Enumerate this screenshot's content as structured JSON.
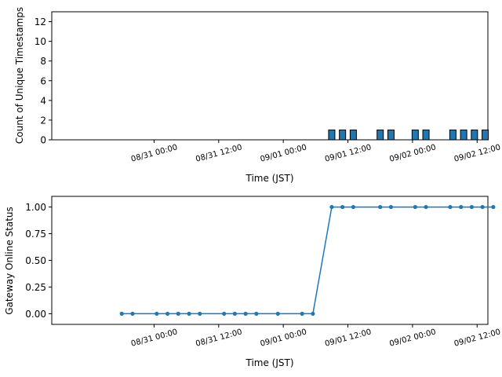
{
  "colors": {
    "bar": "#1f77b4",
    "bar_edge": "#000000",
    "line": "#1f77b4",
    "axes": "#000000",
    "background": "#ffffff"
  },
  "chart_data": [
    {
      "type": "bar",
      "xlabel": "Time (JST)",
      "ylabel": "Count of Unique Timestamps",
      "ylim": [
        0,
        13
      ],
      "yticks": [
        0,
        2,
        4,
        6,
        8,
        10,
        12
      ],
      "xlim": [
        "2025-08-30 05:00",
        "2025-09-02 14:00"
      ],
      "xticks": [
        {
          "t": "2025-08-31 00:00",
          "label": "08/31 00:00"
        },
        {
          "t": "2025-08-31 12:00",
          "label": "08/31 12:00"
        },
        {
          "t": "2025-09-01 00:00",
          "label": "09/01 00:00"
        },
        {
          "t": "2025-09-01 12:00",
          "label": "09/01 12:00"
        },
        {
          "t": "2025-09-02 00:00",
          "label": "09/02 00:00"
        },
        {
          "t": "2025-09-02 12:00",
          "label": "09/02 12:00"
        }
      ],
      "grid": false,
      "bars": [
        {
          "t": "2025-09-01 09:00",
          "value": 1
        },
        {
          "t": "2025-09-01 11:00",
          "value": 1
        },
        {
          "t": "2025-09-01 13:00",
          "value": 1
        },
        {
          "t": "2025-09-01 18:00",
          "value": 1
        },
        {
          "t": "2025-09-01 20:00",
          "value": 1
        },
        {
          "t": "2025-09-02 00:30",
          "value": 1
        },
        {
          "t": "2025-09-02 02:30",
          "value": 1
        },
        {
          "t": "2025-09-02 07:30",
          "value": 1
        },
        {
          "t": "2025-09-02 09:30",
          "value": 1
        },
        {
          "t": "2025-09-02 11:30",
          "value": 1
        },
        {
          "t": "2025-09-02 13:30",
          "value": 1
        }
      ]
    },
    {
      "type": "line",
      "xlabel": "Time (JST)",
      "ylabel": "Gateway Online Status",
      "ylim": [
        -0.1,
        1.1
      ],
      "yticks": [
        "0.00",
        "0.25",
        "0.50",
        "0.75",
        "1.00"
      ],
      "xlim": [
        "2025-08-30 05:00",
        "2025-09-02 14:00"
      ],
      "xticks": [
        {
          "t": "2025-08-31 00:00",
          "label": "08/31 00:00"
        },
        {
          "t": "2025-08-31 12:00",
          "label": "08/31 12:00"
        },
        {
          "t": "2025-09-01 00:00",
          "label": "09/01 00:00"
        },
        {
          "t": "2025-09-01 12:00",
          "label": "09/01 12:00"
        },
        {
          "t": "2025-09-02 00:00",
          "label": "09/02 00:00"
        },
        {
          "t": "2025-09-02 12:00",
          "label": "09/02 12:00"
        }
      ],
      "grid": false,
      "points": [
        {
          "t": "2025-08-30 18:00",
          "value": 0
        },
        {
          "t": "2025-08-30 20:00",
          "value": 0
        },
        {
          "t": "2025-08-31 00:30",
          "value": 0
        },
        {
          "t": "2025-08-31 02:30",
          "value": 0
        },
        {
          "t": "2025-08-31 04:30",
          "value": 0
        },
        {
          "t": "2025-08-31 06:30",
          "value": 0
        },
        {
          "t": "2025-08-31 08:30",
          "value": 0
        },
        {
          "t": "2025-08-31 13:00",
          "value": 0
        },
        {
          "t": "2025-08-31 15:00",
          "value": 0
        },
        {
          "t": "2025-08-31 17:00",
          "value": 0
        },
        {
          "t": "2025-08-31 19:00",
          "value": 0
        },
        {
          "t": "2025-08-31 23:00",
          "value": 0
        },
        {
          "t": "2025-09-01 03:30",
          "value": 0
        },
        {
          "t": "2025-09-01 05:30",
          "value": 0
        },
        {
          "t": "2025-09-01 09:00",
          "value": 1
        },
        {
          "t": "2025-09-01 11:00",
          "value": 1
        },
        {
          "t": "2025-09-01 13:00",
          "value": 1
        },
        {
          "t": "2025-09-01 18:00",
          "value": 1
        },
        {
          "t": "2025-09-01 20:00",
          "value": 1
        },
        {
          "t": "2025-09-02 00:30",
          "value": 1
        },
        {
          "t": "2025-09-02 02:30",
          "value": 1
        },
        {
          "t": "2025-09-02 07:00",
          "value": 1
        },
        {
          "t": "2025-09-02 09:00",
          "value": 1
        },
        {
          "t": "2025-09-02 11:00",
          "value": 1
        },
        {
          "t": "2025-09-02 13:00",
          "value": 1
        },
        {
          "t": "2025-09-02 15:00",
          "value": 1
        }
      ]
    }
  ]
}
